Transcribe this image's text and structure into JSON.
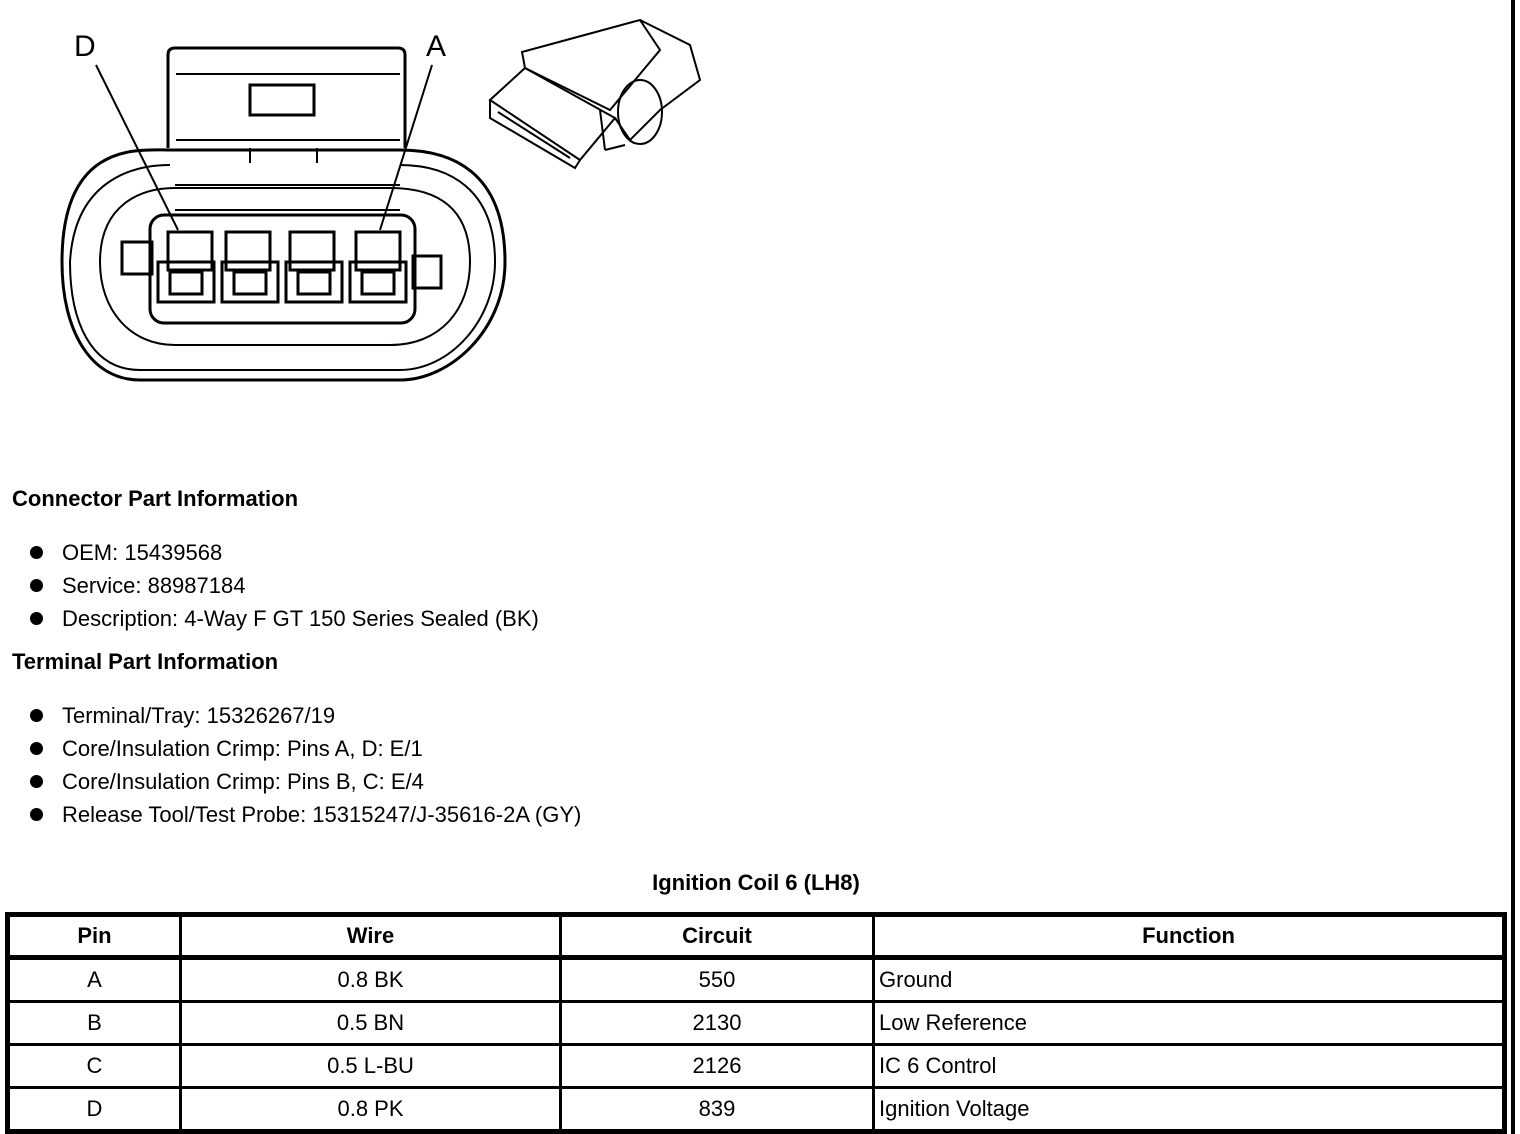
{
  "diagram": {
    "pin_labels": [
      "D",
      "A"
    ]
  },
  "connector_info": {
    "title": "Connector Part Information",
    "items": [
      "OEM: 15439568",
      "Service: 88987184",
      "Description: 4-Way F GT 150 Series Sealed (BK)"
    ]
  },
  "terminal_info": {
    "title": "Terminal Part Information",
    "items": [
      "Terminal/Tray: 15326267/19",
      "Core/Insulation Crimp: Pins A, D: E/1",
      "Core/Insulation Crimp: Pins B, C: E/4",
      "Release Tool/Test Probe: 15315247/J-35616-2A (GY)"
    ]
  },
  "table": {
    "caption": "Ignition Coil 6 (LH8)",
    "headers": [
      "Pin",
      "Wire",
      "Circuit",
      "Function"
    ],
    "rows": [
      [
        "A",
        "0.8 BK",
        "550",
        "Ground"
      ],
      [
        "B",
        "0.5 BN",
        "2130",
        "Low Reference"
      ],
      [
        "C",
        "0.5 L-BU",
        "2126",
        "IC 6 Control"
      ],
      [
        "D",
        "0.8 PK",
        "839",
        "Ignition Voltage"
      ]
    ]
  }
}
